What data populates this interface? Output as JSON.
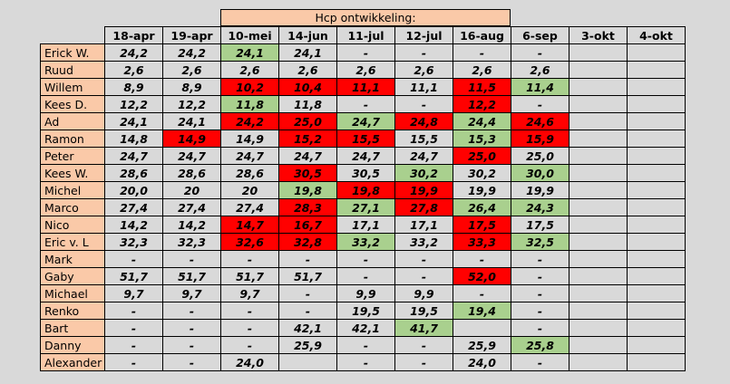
{
  "title": "Hcp ontwikkeling:",
  "colors": {
    "name_bg": "#fac9a8",
    "worse": "#ff0000",
    "better": "#a9d08e",
    "default": "#d9d9d9"
  },
  "columns": [
    "18-apr",
    "19-apr",
    "10-mei",
    "14-jun",
    "11-jul",
    "12-jul",
    "16-aug",
    "6-sep",
    "3-okt",
    "4-okt"
  ],
  "rows": [
    {
      "name": "Erick W.",
      "cells": [
        {
          "v": "24,2"
        },
        {
          "v": "24,2"
        },
        {
          "v": "24,1",
          "c": "green"
        },
        {
          "v": "24,1"
        },
        {
          "v": "-"
        },
        {
          "v": "-"
        },
        {
          "v": "-"
        },
        {
          "v": "-"
        },
        {
          "v": ""
        },
        {
          "v": ""
        }
      ]
    },
    {
      "name": "Ruud",
      "cells": [
        {
          "v": "2,6"
        },
        {
          "v": "2,6"
        },
        {
          "v": "2,6"
        },
        {
          "v": "2,6"
        },
        {
          "v": "2,6"
        },
        {
          "v": "2,6"
        },
        {
          "v": "2,6"
        },
        {
          "v": "2,6"
        },
        {
          "v": ""
        },
        {
          "v": ""
        }
      ]
    },
    {
      "name": "Willem",
      "cells": [
        {
          "v": "8,9"
        },
        {
          "v": "8,9"
        },
        {
          "v": "10,2",
          "c": "red"
        },
        {
          "v": "10,4",
          "c": "red"
        },
        {
          "v": "11,1",
          "c": "red"
        },
        {
          "v": "11,1"
        },
        {
          "v": "11,5",
          "c": "red"
        },
        {
          "v": "11,4",
          "c": "green"
        },
        {
          "v": ""
        },
        {
          "v": ""
        }
      ]
    },
    {
      "name": "Kees D.",
      "cells": [
        {
          "v": "12,2"
        },
        {
          "v": "12,2"
        },
        {
          "v": "11,8",
          "c": "green"
        },
        {
          "v": "11,8"
        },
        {
          "v": "-"
        },
        {
          "v": "-"
        },
        {
          "v": "12,2",
          "c": "red"
        },
        {
          "v": "-"
        },
        {
          "v": ""
        },
        {
          "v": ""
        }
      ]
    },
    {
      "name": "Ad",
      "cells": [
        {
          "v": "24,1"
        },
        {
          "v": "24,1"
        },
        {
          "v": "24,2",
          "c": "red"
        },
        {
          "v": "25,0",
          "c": "red"
        },
        {
          "v": "24,7",
          "c": "green"
        },
        {
          "v": "24,8",
          "c": "red"
        },
        {
          "v": "24,4",
          "c": "green"
        },
        {
          "v": "24,6",
          "c": "red"
        },
        {
          "v": ""
        },
        {
          "v": ""
        }
      ]
    },
    {
      "name": "Ramon",
      "cells": [
        {
          "v": "14,8"
        },
        {
          "v": "14,9",
          "c": "red"
        },
        {
          "v": "14,9"
        },
        {
          "v": "15,2",
          "c": "red"
        },
        {
          "v": "15,5",
          "c": "red"
        },
        {
          "v": "15,5"
        },
        {
          "v": "15,3",
          "c": "green"
        },
        {
          "v": "15,9",
          "c": "red"
        },
        {
          "v": ""
        },
        {
          "v": ""
        }
      ]
    },
    {
      "name": "Peter",
      "cells": [
        {
          "v": "24,7"
        },
        {
          "v": "24,7"
        },
        {
          "v": "24,7"
        },
        {
          "v": "24,7"
        },
        {
          "v": "24,7"
        },
        {
          "v": "24,7"
        },
        {
          "v": "25,0",
          "c": "red"
        },
        {
          "v": "25,0"
        },
        {
          "v": ""
        },
        {
          "v": ""
        }
      ]
    },
    {
      "name": "Kees W.",
      "cells": [
        {
          "v": "28,6"
        },
        {
          "v": "28,6"
        },
        {
          "v": "28,6"
        },
        {
          "v": "30,5",
          "c": "red"
        },
        {
          "v": "30,5"
        },
        {
          "v": "30,2",
          "c": "green"
        },
        {
          "v": "30,2"
        },
        {
          "v": "30,0",
          "c": "green"
        },
        {
          "v": ""
        },
        {
          "v": ""
        }
      ]
    },
    {
      "name": "Michel",
      "cells": [
        {
          "v": "20,0"
        },
        {
          "v": "20"
        },
        {
          "v": "20"
        },
        {
          "v": "19,8",
          "c": "green"
        },
        {
          "v": "19,8",
          "c": "red"
        },
        {
          "v": "19,9",
          "c": "red"
        },
        {
          "v": "19,9"
        },
        {
          "v": "19,9"
        },
        {
          "v": ""
        },
        {
          "v": ""
        }
      ]
    },
    {
      "name": "Marco",
      "cells": [
        {
          "v": "27,4"
        },
        {
          "v": "27,4"
        },
        {
          "v": "27,4"
        },
        {
          "v": "28,3",
          "c": "red"
        },
        {
          "v": "27,1",
          "c": "green"
        },
        {
          "v": "27,8",
          "c": "red"
        },
        {
          "v": "26,4",
          "c": "green"
        },
        {
          "v": "24,3",
          "c": "green"
        },
        {
          "v": ""
        },
        {
          "v": ""
        }
      ]
    },
    {
      "name": "Nico",
      "cells": [
        {
          "v": "14,2"
        },
        {
          "v": "14,2"
        },
        {
          "v": "14,7",
          "c": "red"
        },
        {
          "v": "16,7",
          "c": "red"
        },
        {
          "v": "17,1"
        },
        {
          "v": "17,1"
        },
        {
          "v": "17,5",
          "c": "red"
        },
        {
          "v": "17,5"
        },
        {
          "v": ""
        },
        {
          "v": ""
        }
      ]
    },
    {
      "name": "Eric v. L",
      "cells": [
        {
          "v": "32,3"
        },
        {
          "v": "32,3"
        },
        {
          "v": "32,6",
          "c": "red"
        },
        {
          "v": "32,8",
          "c": "red"
        },
        {
          "v": "33,2",
          "c": "green"
        },
        {
          "v": "33,2"
        },
        {
          "v": "33,3",
          "c": "red"
        },
        {
          "v": "32,5",
          "c": "green"
        },
        {
          "v": ""
        },
        {
          "v": ""
        }
      ]
    },
    {
      "name": "Mark",
      "cells": [
        {
          "v": "-"
        },
        {
          "v": "-"
        },
        {
          "v": "-"
        },
        {
          "v": "-"
        },
        {
          "v": "-"
        },
        {
          "v": "-"
        },
        {
          "v": "-"
        },
        {
          "v": "-"
        },
        {
          "v": ""
        },
        {
          "v": ""
        }
      ]
    },
    {
      "name": "Gaby",
      "cells": [
        {
          "v": "51,7"
        },
        {
          "v": "51,7"
        },
        {
          "v": "51,7"
        },
        {
          "v": "51,7"
        },
        {
          "v": "-"
        },
        {
          "v": "-"
        },
        {
          "v": "52,0",
          "c": "red"
        },
        {
          "v": "-"
        },
        {
          "v": ""
        },
        {
          "v": ""
        }
      ]
    },
    {
      "name": "Michael",
      "cells": [
        {
          "v": "9,7"
        },
        {
          "v": "9,7"
        },
        {
          "v": "9,7"
        },
        {
          "v": "-"
        },
        {
          "v": "9,9"
        },
        {
          "v": "9,9"
        },
        {
          "v": "-"
        },
        {
          "v": "-"
        },
        {
          "v": ""
        },
        {
          "v": ""
        }
      ]
    },
    {
      "name": "Renko",
      "cells": [
        {
          "v": "-"
        },
        {
          "v": "-"
        },
        {
          "v": "-"
        },
        {
          "v": "-"
        },
        {
          "v": "19,5"
        },
        {
          "v": "19,5"
        },
        {
          "v": "19,4",
          "c": "green"
        },
        {
          "v": "-"
        },
        {
          "v": ""
        },
        {
          "v": ""
        }
      ]
    },
    {
      "name": "Bart",
      "cells": [
        {
          "v": "-"
        },
        {
          "v": "-"
        },
        {
          "v": "-"
        },
        {
          "v": "42,1"
        },
        {
          "v": "42,1"
        },
        {
          "v": "41,7",
          "c": "green"
        },
        {
          "v": ""
        },
        {
          "v": "-"
        },
        {
          "v": ""
        },
        {
          "v": ""
        }
      ]
    },
    {
      "name": "Danny",
      "cells": [
        {
          "v": "-"
        },
        {
          "v": "-"
        },
        {
          "v": "-"
        },
        {
          "v": "25,9"
        },
        {
          "v": "-"
        },
        {
          "v": "-"
        },
        {
          "v": "25,9"
        },
        {
          "v": "25,8",
          "c": "green"
        },
        {
          "v": ""
        },
        {
          "v": ""
        }
      ]
    },
    {
      "name": "Alexander",
      "cells": [
        {
          "v": "-"
        },
        {
          "v": "-"
        },
        {
          "v": "24,0"
        },
        {
          "v": ""
        },
        {
          "v": "-"
        },
        {
          "v": "-"
        },
        {
          "v": "24,0"
        },
        {
          "v": "-"
        },
        {
          "v": ""
        },
        {
          "v": ""
        }
      ]
    }
  ]
}
